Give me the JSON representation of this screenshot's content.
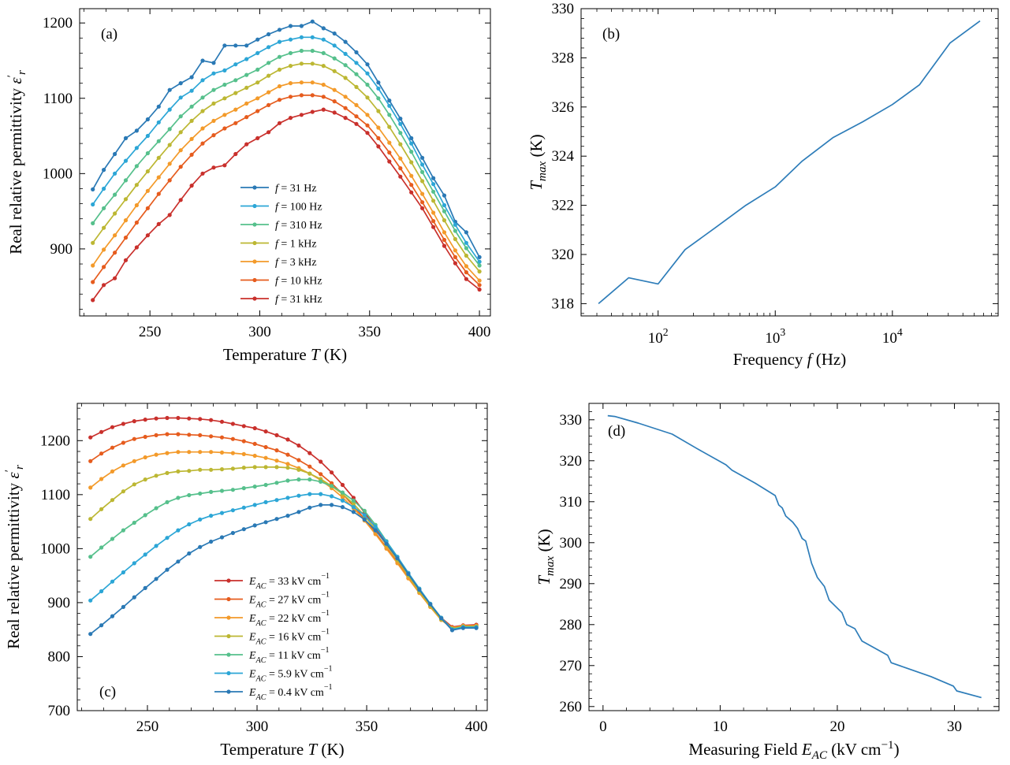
{
  "colors": {
    "blue": "#2a79b5",
    "cyan": "#2ca6d6",
    "green": "#56c08c",
    "olive": "#bcb733",
    "orange": "#f39a2a",
    "red_orange": "#e65c1e",
    "red": "#c9302c",
    "line_b": "#2e7db9"
  },
  "chart_data": [
    {
      "type": "line",
      "panel": "(a)",
      "xlabel": "Temperature T (K)",
      "ylabel": "Real relative permittivity ε′r",
      "xlim": [
        218,
        405
      ],
      "ylim": [
        811,
        1219
      ],
      "xticks": [
        "250",
        "300",
        "350",
        "400"
      ],
      "yticks": [
        "900",
        "1000",
        "1100",
        "1200"
      ],
      "legend_position": "center",
      "x": [
        224,
        229,
        234,
        239,
        244,
        249,
        254,
        259,
        264,
        269,
        274,
        279,
        284,
        289,
        294,
        299,
        304,
        309,
        314,
        319,
        324,
        329,
        334,
        339,
        344,
        349,
        354,
        359,
        364,
        369,
        374,
        379,
        384,
        389,
        394,
        400
      ],
      "series": [
        {
          "name": "f = 31 Hz",
          "color": "#2a79b5",
          "values": [
            979,
            1005,
            1026,
            1047,
            1057,
            1072,
            1089,
            1111,
            1120,
            1128,
            1150,
            1147,
            1170,
            1170,
            1170,
            1178,
            1185,
            1191,
            1196,
            1196,
            1202,
            1193,
            1186,
            1175,
            1161,
            1145,
            1121,
            1097,
            1073,
            1047,
            1021,
            994,
            971,
            936,
            922,
            889
          ]
        },
        {
          "name": "f = 100 Hz",
          "color": "#2ca6d6",
          "values": [
            959,
            980,
            1000,
            1017,
            1034,
            1050,
            1068,
            1085,
            1101,
            1110,
            1124,
            1133,
            1137,
            1145,
            1152,
            1160,
            1168,
            1175,
            1178,
            1181,
            1181,
            1178,
            1170,
            1159,
            1147,
            1133,
            1113,
            1090,
            1066,
            1040,
            1012,
            986,
            958,
            932,
            908,
            883
          ]
        },
        {
          "name": "f = 310 Hz",
          "color": "#56c08c",
          "values": [
            934,
            954,
            972,
            991,
            1010,
            1027,
            1043,
            1059,
            1076,
            1089,
            1101,
            1111,
            1118,
            1124,
            1131,
            1138,
            1147,
            1155,
            1160,
            1163,
            1163,
            1160,
            1153,
            1144,
            1132,
            1118,
            1100,
            1078,
            1054,
            1029,
            1002,
            976,
            950,
            924,
            901,
            878
          ]
        },
        {
          "name": "f = 1 kHz",
          "color": "#bcb733",
          "values": [
            908,
            928,
            947,
            966,
            985,
            1003,
            1021,
            1038,
            1055,
            1070,
            1083,
            1093,
            1100,
            1107,
            1114,
            1121,
            1130,
            1138,
            1143,
            1146,
            1146,
            1143,
            1136,
            1127,
            1115,
            1101,
            1083,
            1062,
            1039,
            1015,
            990,
            964,
            938,
            913,
            891,
            870
          ]
        },
        {
          "name": "f = 3 kHz",
          "color": "#f39a2a",
          "values": [
            878,
            899,
            918,
            938,
            958,
            977,
            995,
            1013,
            1031,
            1046,
            1060,
            1070,
            1078,
            1085,
            1093,
            1100,
            1108,
            1116,
            1120,
            1121,
            1121,
            1118,
            1111,
            1102,
            1091,
            1078,
            1061,
            1041,
            1020,
            997,
            973,
            948,
            922,
            898,
            877,
            858
          ]
        },
        {
          "name": "f = 10 kHz",
          "color": "#e65c1e",
          "values": [
            856,
            876,
            895,
            915,
            935,
            954,
            973,
            991,
            1009,
            1025,
            1040,
            1051,
            1060,
            1067,
            1075,
            1083,
            1091,
            1098,
            1102,
            1104,
            1104,
            1102,
            1096,
            1087,
            1076,
            1064,
            1047,
            1028,
            1007,
            985,
            962,
            937,
            912,
            889,
            869,
            852
          ]
        },
        {
          "name": "f = 31 kHz",
          "color": "#c9302c",
          "values": [
            832,
            852,
            861,
            885,
            902,
            918,
            933,
            945,
            965,
            984,
            1000,
            1008,
            1011,
            1026,
            1039,
            1047,
            1055,
            1067,
            1074,
            1078,
            1082,
            1085,
            1081,
            1074,
            1066,
            1054,
            1036,
            1016,
            996,
            975,
            954,
            929,
            904,
            881,
            860,
            846
          ]
        }
      ]
    },
    {
      "type": "line",
      "panel": "(b)",
      "xlabel": "Frequency f (Hz)",
      "ylabel": "Tmax (K)",
      "xscale": "log",
      "xlim": [
        22,
        80000
      ],
      "ylim": [
        317.5,
        330
      ],
      "xticks": [
        "10^2",
        "10^3",
        "10^4"
      ],
      "yticks": [
        "318",
        "320",
        "322",
        "324",
        "326",
        "328",
        "330"
      ],
      "x": [
        31,
        56,
        100,
        170,
        310,
        560,
        1000,
        1700,
        3100,
        5600,
        10000,
        17000,
        31000,
        56000
      ],
      "series": [
        {
          "name": "",
          "color": "#2e7db9",
          "values": [
            318.0,
            319.05,
            318.8,
            320.2,
            321.1,
            322.0,
            322.75,
            323.8,
            324.75,
            325.4,
            326.1,
            326.9,
            328.6,
            329.5
          ]
        }
      ]
    },
    {
      "type": "line",
      "panel": "(c)",
      "xlabel": "Temperature T (K)",
      "ylabel": "Real relative permittivity ε′r",
      "xlim": [
        218,
        405
      ],
      "ylim": [
        700,
        1269
      ],
      "xticks": [
        "250",
        "300",
        "350",
        "400"
      ],
      "yticks": [
        "700",
        "800",
        "900",
        "1000",
        "1100",
        "1200"
      ],
      "legend_position": "lower center",
      "x": [
        224,
        229,
        234,
        239,
        244,
        249,
        254,
        259,
        264,
        269,
        274,
        279,
        284,
        289,
        294,
        299,
        304,
        309,
        314,
        319,
        324,
        329,
        334,
        339,
        344,
        349,
        354,
        359,
        364,
        369,
        374,
        379,
        384,
        389,
        394,
        400
      ],
      "series": [
        {
          "name": "EAC = 33 kV cm−1",
          "color": "#c9302c",
          "values": [
            1206,
            1216,
            1225,
            1231,
            1236,
            1239,
            1241,
            1242,
            1242,
            1241,
            1240,
            1238,
            1235,
            1231,
            1227,
            1223,
            1217,
            1210,
            1202,
            1191,
            1177,
            1161,
            1141,
            1118,
            1094,
            1067,
            1039,
            1010,
            981,
            952,
            924,
            897,
            872,
            855,
            858,
            859
          ]
        },
        {
          "name": "EAC = 27 kV cm−1",
          "color": "#e65c1e",
          "values": [
            1162,
            1176,
            1187,
            1196,
            1203,
            1207,
            1210,
            1212,
            1212,
            1211,
            1210,
            1208,
            1206,
            1203,
            1199,
            1194,
            1188,
            1182,
            1174,
            1164,
            1152,
            1138,
            1121,
            1101,
            1079,
            1055,
            1029,
            1002,
            975,
            946,
            920,
            894,
            870,
            854,
            857,
            858
          ]
        },
        {
          "name": "EAC = 22 kV cm−1",
          "color": "#f39a2a",
          "values": [
            1113,
            1129,
            1143,
            1154,
            1162,
            1169,
            1174,
            1177,
            1179,
            1179,
            1179,
            1179,
            1178,
            1177,
            1175,
            1172,
            1168,
            1163,
            1157,
            1149,
            1139,
            1127,
            1112,
            1095,
            1075,
            1052,
            1027,
            1000,
            973,
            945,
            918,
            892,
            868,
            853,
            857,
            857
          ]
        },
        {
          "name": "EAC = 16 kV cm−1",
          "color": "#bcb733",
          "values": [
            1055,
            1073,
            1090,
            1106,
            1119,
            1128,
            1135,
            1140,
            1143,
            1144,
            1146,
            1146,
            1147,
            1148,
            1150,
            1151,
            1151,
            1151,
            1150,
            1146,
            1139,
            1129,
            1116,
            1101,
            1083,
            1061,
            1035,
            1007,
            979,
            950,
            921,
            894,
            869,
            852,
            856,
            856
          ]
        },
        {
          "name": "EAC = 11 kV cm−1",
          "color": "#56c08c",
          "values": [
            985,
            1002,
            1018,
            1034,
            1048,
            1062,
            1075,
            1086,
            1094,
            1099,
            1102,
            1105,
            1107,
            1109,
            1112,
            1115,
            1118,
            1122,
            1126,
            1128,
            1128,
            1124,
            1116,
            1104,
            1089,
            1070,
            1044,
            1014,
            985,
            955,
            926,
            898,
            872,
            851,
            855,
            855
          ]
        },
        {
          "name": "EAC = 5.9 kV cm−1",
          "color": "#2ca6d6",
          "values": [
            904,
            921,
            939,
            956,
            973,
            989,
            1005,
            1020,
            1034,
            1045,
            1054,
            1061,
            1066,
            1071,
            1076,
            1081,
            1086,
            1090,
            1094,
            1098,
            1101,
            1101,
            1097,
            1089,
            1077,
            1062,
            1041,
            1013,
            985,
            955,
            926,
            898,
            872,
            850,
            854,
            854
          ]
        },
        {
          "name": "EAC = 0.4 kV cm−1",
          "color": "#2a79b5",
          "values": [
            842,
            858,
            875,
            892,
            910,
            927,
            944,
            961,
            976,
            991,
            1003,
            1013,
            1021,
            1029,
            1036,
            1043,
            1049,
            1055,
            1061,
            1068,
            1076,
            1081,
            1081,
            1077,
            1068,
            1054,
            1034,
            1009,
            982,
            953,
            924,
            897,
            871,
            849,
            853,
            853
          ]
        }
      ]
    },
    {
      "type": "line",
      "panel": "(d)",
      "xlabel": "Measuring  Field EAC (kV cm−1)",
      "ylabel": "Tmax (K)",
      "xlim": [
        -1.2,
        33.8
      ],
      "ylim": [
        259,
        334
      ],
      "xticks": [
        "0",
        "10",
        "20",
        "30"
      ],
      "yticks": [
        "260",
        "270",
        "280",
        "290",
        "300",
        "310",
        "320",
        "330"
      ],
      "x": [
        0.4,
        1.0,
        3.0,
        5.9,
        8.0,
        10.5,
        11.0,
        13.0,
        14.7,
        15.0,
        15.3,
        15.6,
        16.2,
        16.6,
        17.0,
        17.3,
        17.8,
        18.3,
        18.9,
        19.3,
        20.4,
        20.8,
        21.5,
        22.1,
        24.3,
        24.6,
        26.0,
        28.0,
        29.9,
        30.2,
        32.3
      ],
      "series": [
        {
          "name": "",
          "color": "#2e7db9",
          "values": [
            331.0,
            330.8,
            329.2,
            326.5,
            323.0,
            319.0,
            317.7,
            314.5,
            311.5,
            309.2,
            308.5,
            306.5,
            305.0,
            303.5,
            301.0,
            300.4,
            295.0,
            291.5,
            289.3,
            286.0,
            282.9,
            280.0,
            279.0,
            276.0,
            272.5,
            270.7,
            269.3,
            267.3,
            265.0,
            263.8,
            262.2
          ]
        }
      ]
    }
  ]
}
